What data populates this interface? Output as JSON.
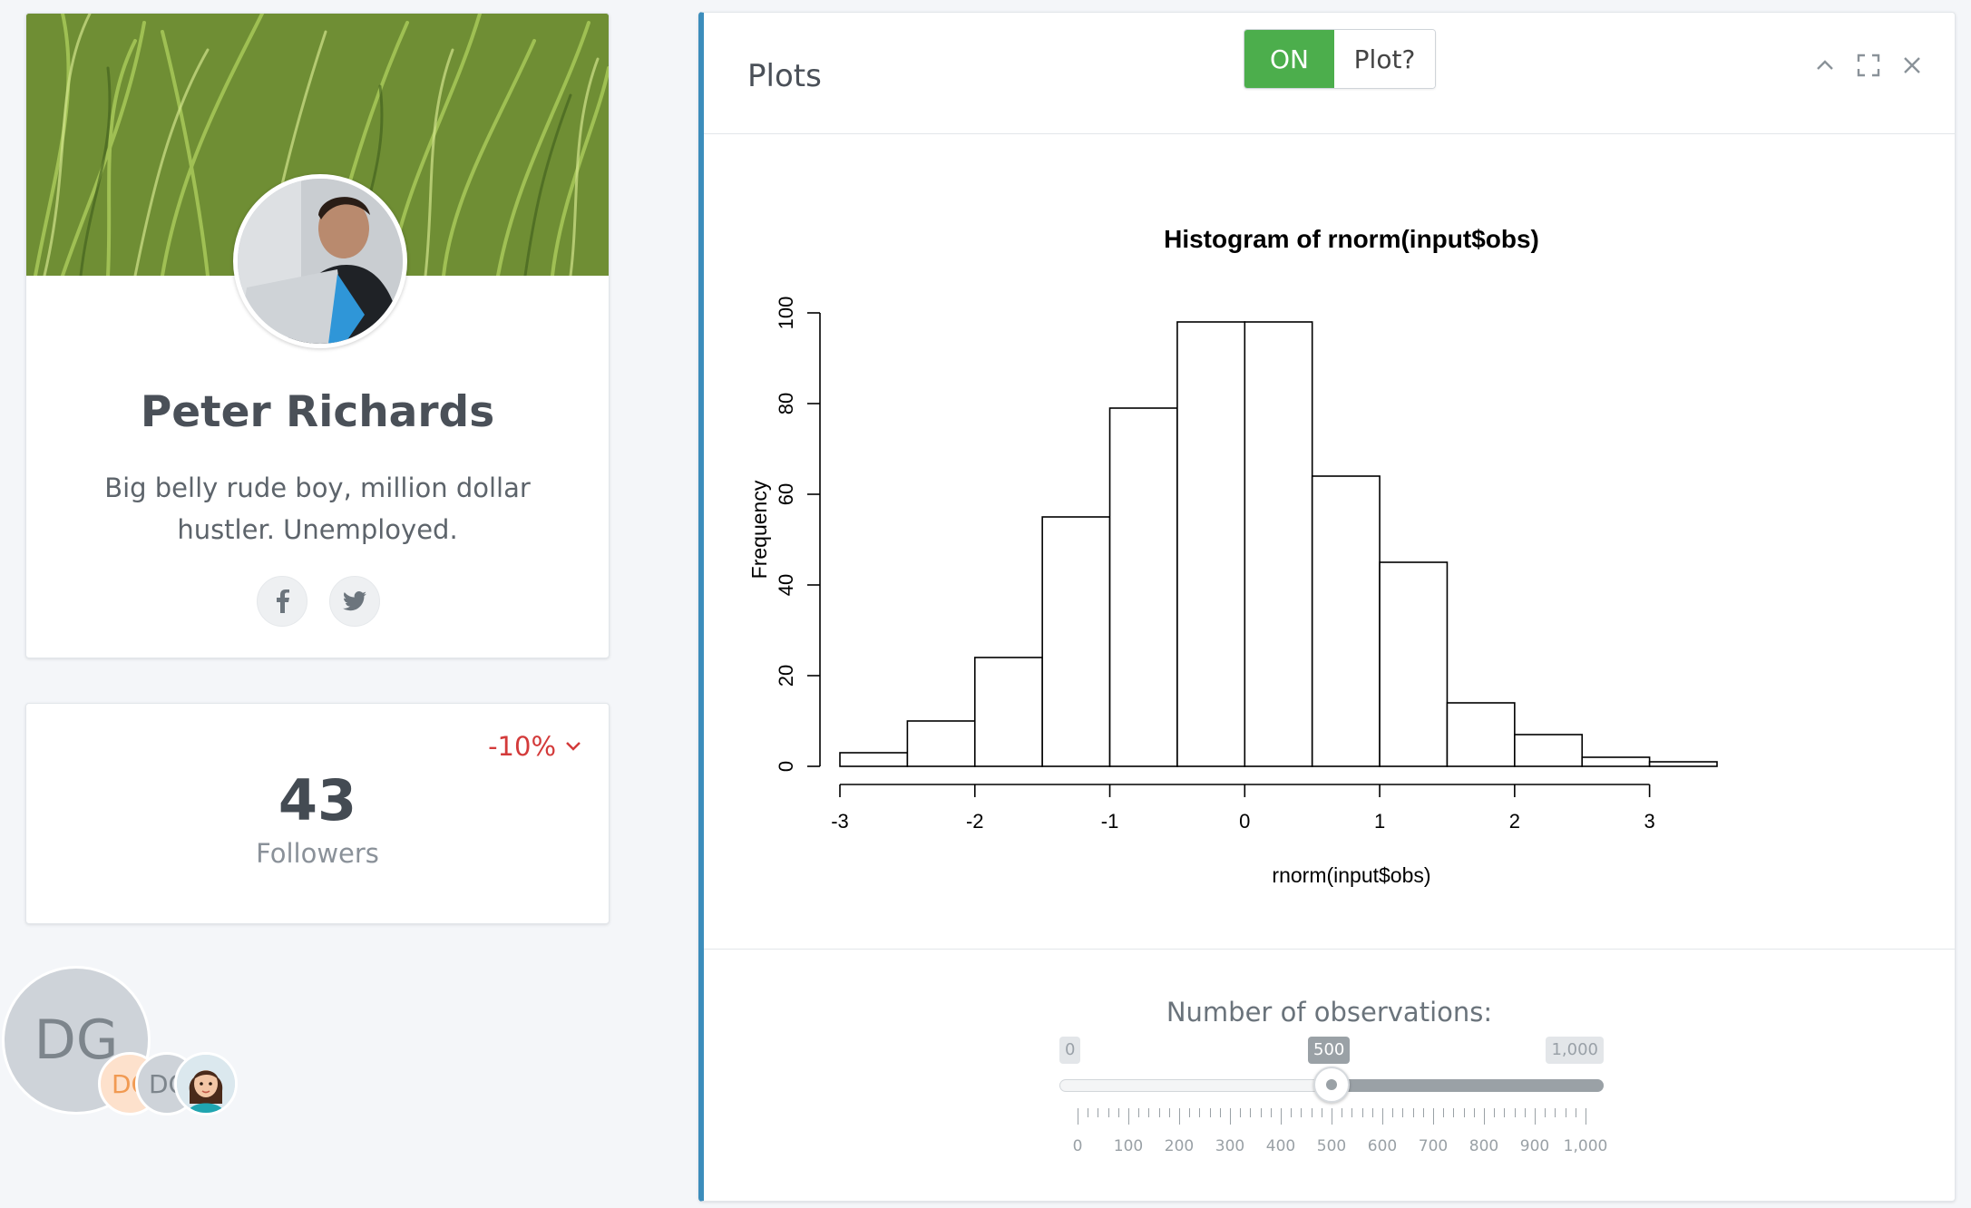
{
  "profile": {
    "name": "Peter Richards",
    "bio": "Big belly rude boy, million dollar hustler. Unemployed.",
    "social": [
      "facebook-icon",
      "twitter-icon"
    ]
  },
  "stats": {
    "trend": "-10%",
    "count": "43",
    "label": "Followers",
    "trend_color": "#d33a3a"
  },
  "user_avatars": {
    "main_initials": "DG",
    "small": [
      {
        "initials": "DG",
        "color": "#f19a52"
      },
      {
        "initials": "DG",
        "color": "#7d858c"
      },
      {
        "icon": "woman-avatar-icon"
      }
    ]
  },
  "plots": {
    "title": "Plots",
    "toggle_on": "ON",
    "toggle_off": "Plot?",
    "accent_color": "#3c8dbc",
    "toggle_color": "#4cae4c"
  },
  "chart_data": {
    "type": "bar",
    "title": "Histogram of rnorm(input$obs)",
    "xlabel": "rnorm(input$obs)",
    "ylabel": "Frequency",
    "bins": [
      {
        "from": -3.0,
        "to": -2.5,
        "count": 3
      },
      {
        "from": -2.5,
        "to": -2.0,
        "count": 10
      },
      {
        "from": -2.0,
        "to": -1.5,
        "count": 24
      },
      {
        "from": -1.5,
        "to": -1.0,
        "count": 55
      },
      {
        "from": -1.0,
        "to": -0.5,
        "count": 79
      },
      {
        "from": -0.5,
        "to": 0.0,
        "count": 98
      },
      {
        "from": 0.0,
        "to": 0.5,
        "count": 98
      },
      {
        "from": 0.5,
        "to": 1.0,
        "count": 64
      },
      {
        "from": 1.0,
        "to": 1.5,
        "count": 45
      },
      {
        "from": 1.5,
        "to": 2.0,
        "count": 14
      },
      {
        "from": 2.0,
        "to": 2.5,
        "count": 7
      },
      {
        "from": 2.5,
        "to": 3.0,
        "count": 2
      },
      {
        "from": 3.0,
        "to": 3.5,
        "count": 1
      }
    ],
    "xticks": [
      "-3",
      "-2",
      "-1",
      "0",
      "1",
      "2",
      "3"
    ],
    "yticks": [
      "0",
      "20",
      "40",
      "60",
      "80",
      "100"
    ],
    "xlim": [
      -3,
      3.5
    ],
    "ylim": [
      0,
      100
    ]
  },
  "slider": {
    "label": "Number of observations:",
    "min_label": "0",
    "max_label": "1,000",
    "min": 0,
    "max": 1000,
    "value": 500,
    "value_label": "500",
    "grid_labels": [
      "0",
      "100",
      "200",
      "300",
      "400",
      "500",
      "600",
      "700",
      "800",
      "900",
      "1,000"
    ]
  }
}
